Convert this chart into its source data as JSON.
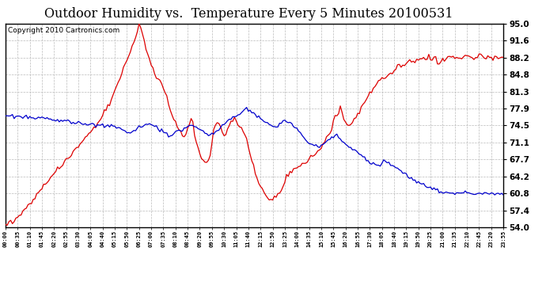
{
  "title": "Outdoor Humidity vs.  Temperature Every 5 Minutes 20100531",
  "copyright": "Copyright 2010 Cartronics.com",
  "y_ticks": [
    54.0,
    57.4,
    60.8,
    64.2,
    67.7,
    71.1,
    74.5,
    77.9,
    81.3,
    84.8,
    88.2,
    91.6,
    95.0
  ],
  "y_min": 54.0,
  "y_max": 95.0,
  "bg_color": "#ffffff",
  "plot_bg_color": "#ffffff",
  "grid_color": "#bbbbbb",
  "line_color_red": "#dd0000",
  "line_color_blue": "#0000cc",
  "title_fontsize": 11.5,
  "copyright_fontsize": 6.5,
  "tick_step": 7
}
